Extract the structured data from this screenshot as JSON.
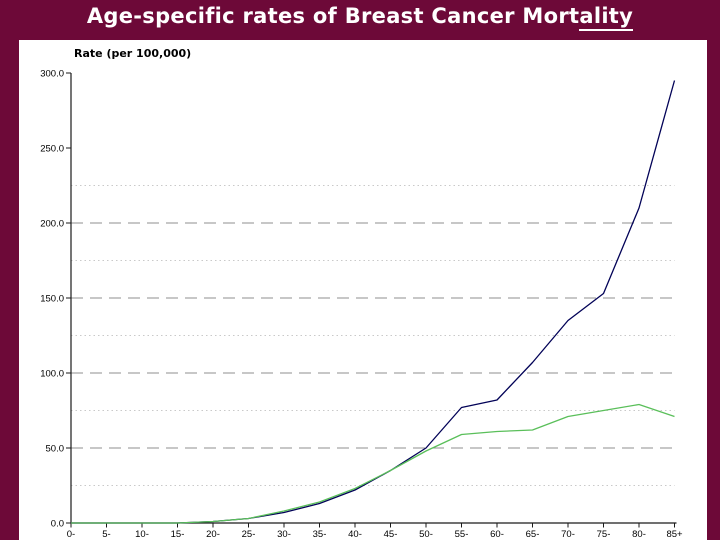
{
  "title": {
    "text_before_underline": "Age-specific rates of Breast Cancer Mort",
    "underlined_text": "ality",
    "full_text": "Age-specific rates of Breast Cancer Mortality"
  },
  "colors": {
    "background": "#6d0938",
    "panel": "#ffffff",
    "title_text": "#ffffff",
    "axis": "#1a1a1a",
    "major_gridline": "#8f8f8f",
    "minor_gridline": "#c9c9c9",
    "navy_series": "#020257",
    "green_series": "#5abf5a"
  },
  "chart_data": {
    "type": "line",
    "title": "Age-specific rates of Breast Cancer Mortality",
    "ylabel": "Rate (per 100,000)",
    "xlabel": "",
    "grid": "on",
    "legend_position": "none",
    "ylim": [
      0,
      300
    ],
    "categories": [
      "0-",
      "5-",
      "10-",
      "15-",
      "20-",
      "25-",
      "30-",
      "35-",
      "40-",
      "45-",
      "50-",
      "55-",
      "60-",
      "65-",
      "70-",
      "75-",
      "80-",
      "85+"
    ],
    "yticks": [
      0,
      50,
      100,
      150,
      200,
      250,
      300
    ],
    "ytick_labels": [
      "0.0",
      "50.0",
      "100.0",
      "150.0",
      "200.0",
      "250.0",
      "300.0"
    ],
    "major_gridlines": [
      50,
      100,
      150,
      200
    ],
    "minor_gridlines": [
      25,
      75,
      125,
      175,
      225
    ],
    "series": [
      {
        "name": "dark-navy-line",
        "color": "#020257",
        "values": [
          0,
          0,
          0,
          0,
          1,
          3,
          7,
          13,
          22,
          35,
          50,
          77,
          82,
          107,
          135,
          153,
          210,
          295
        ]
      },
      {
        "name": "green-line",
        "color": "#5abf5a",
        "values": [
          0,
          0,
          0,
          0,
          1,
          3,
          8,
          14,
          23,
          35,
          48,
          59,
          61,
          62,
          71,
          75,
          79,
          71
        ]
      }
    ]
  }
}
